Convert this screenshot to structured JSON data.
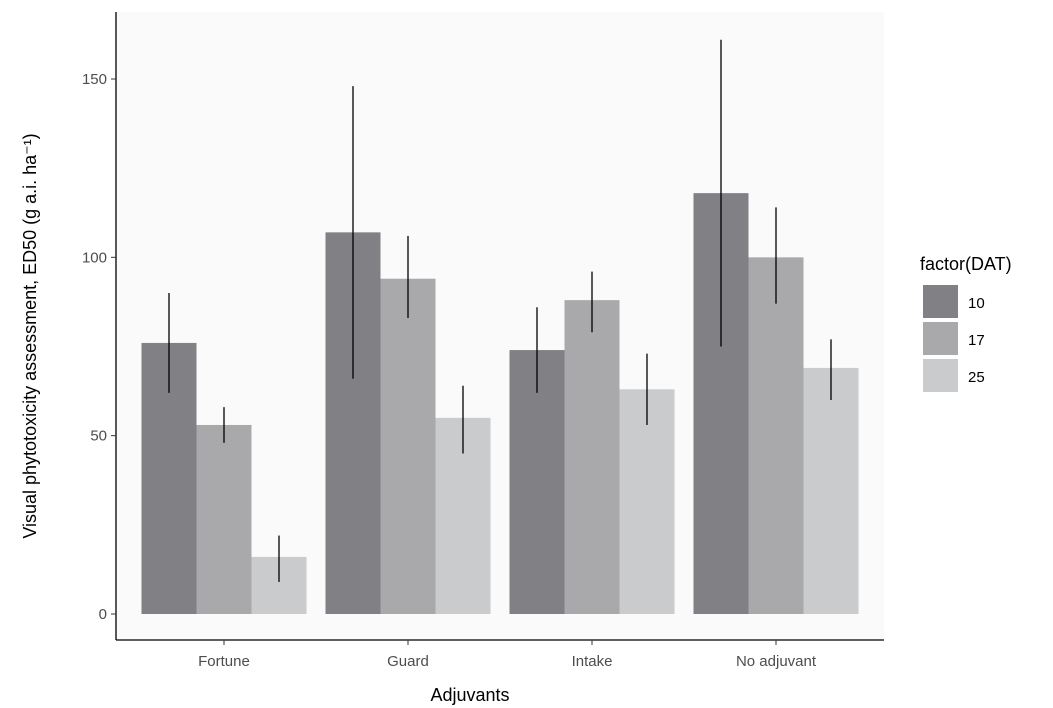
{
  "chart_data": {
    "type": "bar",
    "title": "",
    "xlabel": "Adjuvants",
    "ylabel": "Visual phytotoxicity assessment, ED50 (g a.i. ha⁻¹)",
    "ylim": [
      0,
      165
    ],
    "yticks": [
      0,
      50,
      100,
      150
    ],
    "categories": [
      "Fortune",
      "Guard",
      "Intake",
      "No adjuvant"
    ],
    "legend": {
      "title": "factor(DAT)",
      "position": "right"
    },
    "grid": false,
    "series": [
      {
        "name": "10",
        "color": "#808085",
        "values": [
          76,
          107,
          74,
          118
        ],
        "err_low": [
          62,
          66,
          62,
          75
        ],
        "err_high": [
          90,
          148,
          86,
          161
        ]
      },
      {
        "name": "17",
        "color": "#a9a9ac",
        "values": [
          53,
          94,
          88,
          100
        ],
        "err_low": [
          48,
          83,
          79,
          87
        ],
        "err_high": [
          58,
          106,
          96,
          114
        ]
      },
      {
        "name": "25",
        "color": "#cacbcd",
        "values": [
          16,
          55,
          63,
          69
        ],
        "err_low": [
          9,
          45,
          53,
          60
        ],
        "err_high": [
          22,
          64,
          73,
          77
        ]
      }
    ]
  }
}
